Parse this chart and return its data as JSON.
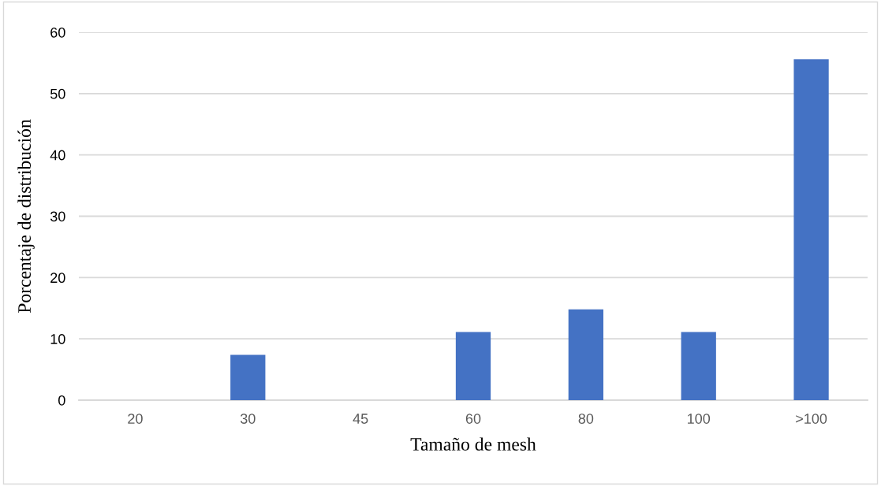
{
  "chart_data": {
    "type": "bar",
    "xlabel": "Tamaño de mesh",
    "ylabel": "Porcentaje de distribución",
    "categories": [
      "20",
      "30",
      "45",
      "60",
      "80",
      "100",
      ">100"
    ],
    "values": [
      0,
      7.4,
      0,
      11.1,
      14.8,
      11.1,
      55.6
    ],
    "color": "#4472c4",
    "ylim": [
      0,
      60
    ],
    "yticks": [
      0,
      10,
      20,
      30,
      40,
      50,
      60
    ],
    "grid": "y",
    "legend": false
  }
}
